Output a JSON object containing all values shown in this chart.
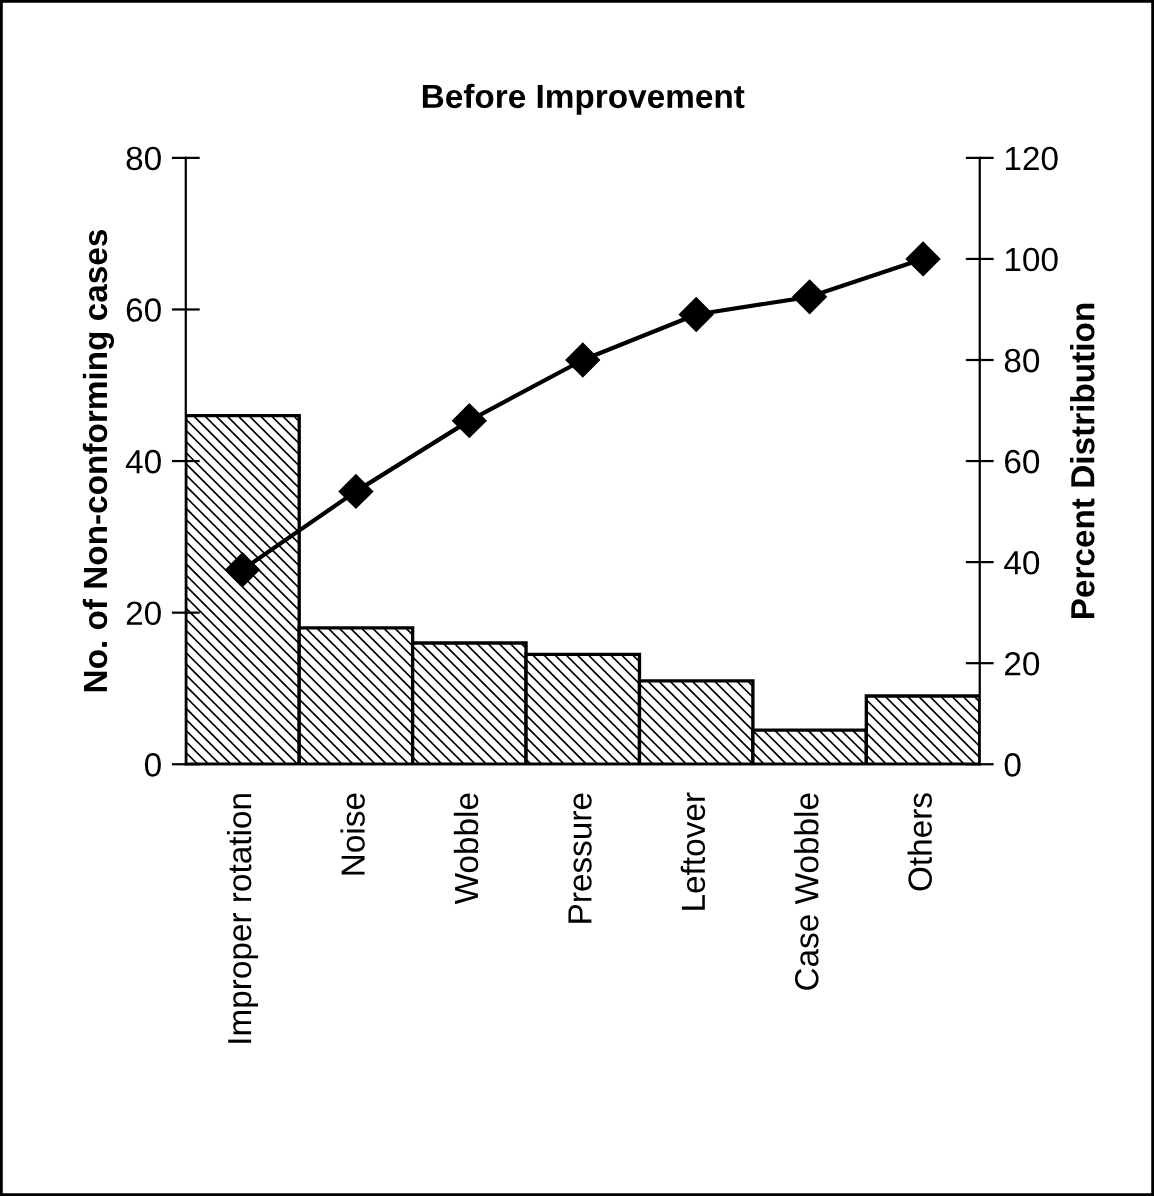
{
  "chart_data": {
    "type": "bar",
    "title": "Before Improvement",
    "ylabel": "No. of Non-conforming cases",
    "y2label": "Percent Distribution",
    "categories": [
      "Improper rotation",
      "Noise",
      "Wobble",
      "Pressure",
      "Leftover",
      "Case Wobble",
      "Others"
    ],
    "series": [
      {
        "color": "#000000",
        "values": [
          46,
          18,
          16,
          14.5,
          11,
          4.5,
          9
        ]
      },
      {
        "type": "line",
        "axis": "y2",
        "color": "#000000",
        "marker": "diamond",
        "values": [
          38.5,
          54,
          68,
          80,
          89,
          92.5,
          100
        ]
      }
    ],
    "ylim": [
      0,
      80
    ],
    "yticks": [
      0,
      20,
      40,
      60,
      80
    ],
    "y2lim": [
      0,
      120
    ],
    "y2ticks": [
      0,
      20,
      40,
      60,
      80,
      100,
      120
    ],
    "grid": false,
    "legend": false
  }
}
